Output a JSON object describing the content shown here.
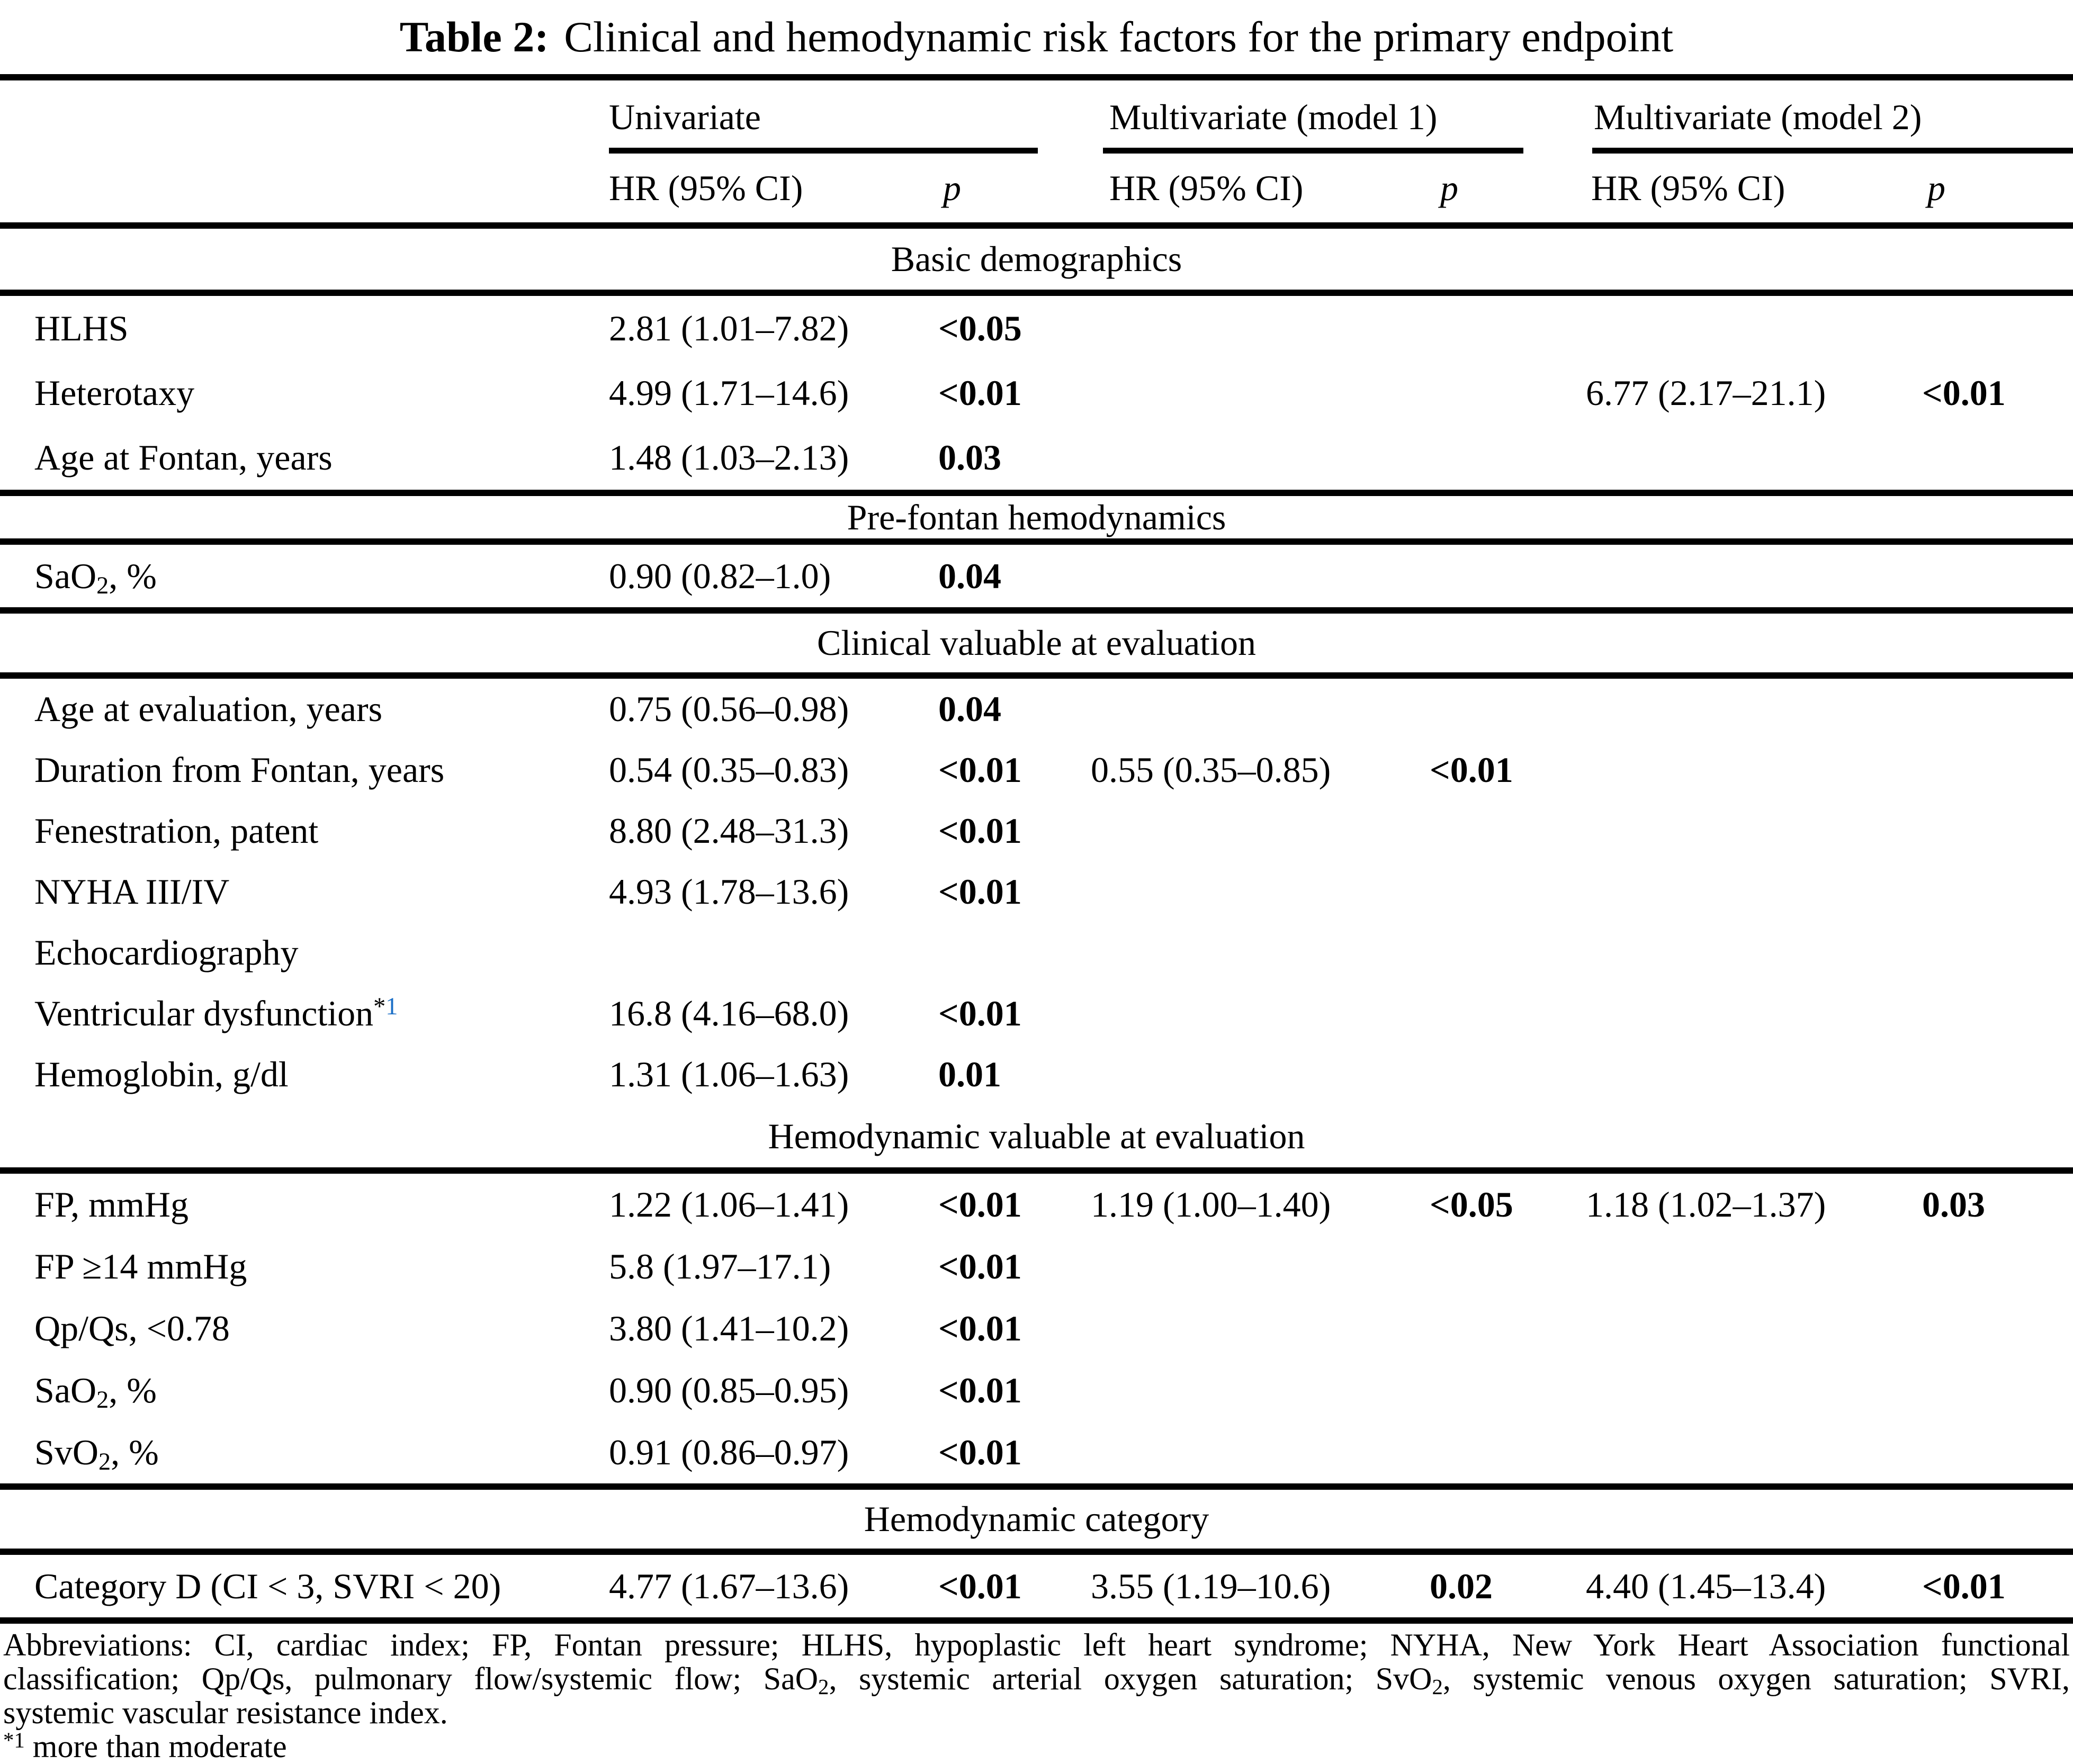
{
  "title": {
    "prefix": "Table 2:",
    "text": "Clinical and hemodynamic risk factors for the primary endpoint"
  },
  "columns": {
    "groups": [
      "Univariate",
      "Multivariate (model 1)",
      "Multivariate (model 2)"
    ],
    "hr_header": "HR (95% CI)",
    "p_header": "p"
  },
  "sections": [
    {
      "header": "Basic demographics",
      "rows": [
        {
          "label": "HLHS",
          "uni_hr": "2.81 (1.01–7.82)",
          "uni_p": "<0.05",
          "m1_hr": "",
          "m1_p": "",
          "m2_hr": "",
          "m2_p": ""
        },
        {
          "label": "Heterotaxy",
          "uni_hr": "4.99 (1.71–14.6)",
          "uni_p": "<0.01",
          "m1_hr": "",
          "m1_p": "",
          "m2_hr": "6.77 (2.17–21.1)",
          "m2_p": "<0.01"
        },
        {
          "label": "Age at Fontan, years",
          "uni_hr": "1.48 (1.03–2.13)",
          "uni_p": "0.03",
          "m1_hr": "",
          "m1_p": "",
          "m2_hr": "",
          "m2_p": ""
        }
      ]
    },
    {
      "header": "Pre-fontan hemodynamics",
      "rows": [
        {
          "label": "SaO<sub>2</sub>, %",
          "uni_hr": "0.90 (0.82–1.0)",
          "uni_p": "0.04",
          "m1_hr": "",
          "m1_p": "",
          "m2_hr": "",
          "m2_p": ""
        }
      ]
    },
    {
      "header": "Clinical valuable at evaluation",
      "rows": [
        {
          "label": "Age at evaluation, years",
          "uni_hr": "0.75 (0.56–0.98)",
          "uni_p": "0.04",
          "m1_hr": "",
          "m1_p": "",
          "m2_hr": "",
          "m2_p": ""
        },
        {
          "label": "Duration from Fontan, years",
          "uni_hr": "0.54 (0.35–0.83)",
          "uni_p": "<0.01",
          "m1_hr": "0.55 (0.35–0.85)",
          "m1_p": "<0.01",
          "m2_hr": "",
          "m2_p": ""
        },
        {
          "label": "Fenestration, patent",
          "uni_hr": "8.80 (2.48–31.3)",
          "uni_p": "<0.01",
          "m1_hr": "",
          "m1_p": "",
          "m2_hr": "",
          "m2_p": ""
        },
        {
          "label": "NYHA III/IV",
          "uni_hr": "4.93 (1.78–13.6)",
          "uni_p": "<0.01",
          "m1_hr": "",
          "m1_p": "",
          "m2_hr": "",
          "m2_p": ""
        },
        {
          "label": "Echocardiography",
          "uni_hr": "",
          "uni_p": "",
          "m1_hr": "",
          "m1_p": "",
          "m2_hr": "",
          "m2_p": ""
        },
        {
          "label": "Ventricular dysfunction<sup>*<span class=\"fn-blue\">1</span></sup>",
          "uni_hr": "16.8 (4.16–68.0)",
          "uni_p": "<0.01",
          "m1_hr": "",
          "m1_p": "",
          "m2_hr": "",
          "m2_p": ""
        },
        {
          "label": "Hemoglobin, g/dl",
          "uni_hr": "1.31 (1.06–1.63)",
          "uni_p": "0.01",
          "m1_hr": "",
          "m1_p": "",
          "m2_hr": "",
          "m2_p": ""
        }
      ]
    },
    {
      "header": "Hemodynamic valuable at evaluation",
      "rows": [
        {
          "label": "FP, mmHg",
          "uni_hr": "1.22 (1.06–1.41)",
          "uni_p": "<0.01",
          "m1_hr": "1.19 (1.00–1.40)",
          "m1_p": "<0.05",
          "m2_hr": "1.18 (1.02–1.37)",
          "m2_p": "0.03"
        },
        {
          "label": "FP ≥14 mmHg",
          "uni_hr": "5.8 (1.97–17.1)",
          "uni_p": "<0.01",
          "m1_hr": "",
          "m1_p": "",
          "m2_hr": "",
          "m2_p": ""
        },
        {
          "label": "Qp/Qs, <0.78",
          "uni_hr": "3.80 (1.41–10.2)",
          "uni_p": "<0.01",
          "m1_hr": "",
          "m1_p": "",
          "m2_hr": "",
          "m2_p": ""
        },
        {
          "label": "SaO<sub>2</sub>, %",
          "uni_hr": "0.90 (0.85–0.95)",
          "uni_p": "<0.01",
          "m1_hr": "",
          "m1_p": "",
          "m2_hr": "",
          "m2_p": ""
        },
        {
          "label": "SvO<sub>2</sub>, %",
          "uni_hr": "0.91 (0.86–0.97)",
          "uni_p": "<0.01",
          "m1_hr": "",
          "m1_p": "",
          "m2_hr": "",
          "m2_p": ""
        }
      ]
    },
    {
      "header": "Hemodynamic category",
      "rows": [
        {
          "label": "Category D (CI < 3, SVRI < 20)",
          "uni_hr": "4.77 (1.67–13.6)",
          "uni_p": "<0.01",
          "m1_hr": "3.55 (1.19–10.6)",
          "m1_p": "0.02",
          "m2_hr": "4.40 (1.45–13.4)",
          "m2_p": "<0.01"
        }
      ]
    }
  ],
  "footnotes": {
    "line1": "Abbreviations: CI, cardiac index; FP, Fontan pressure; HLHS, hypoplastic left heart syndrome; NYHA, New York Heart Association functional",
    "line2": "classification; Qp/Qs, pulmonary flow/systemic flow; SaO<sub>2</sub>, systemic arterial oxygen saturation; SvO<sub>2</sub>, systemic venous oxygen saturation; SVRI,",
    "line3": "systemic vascular resistance index.",
    "line4": "<sup>*1</sup> more than moderate"
  },
  "colors": {
    "reference_link_blue": "#1b6fc7",
    "text": "#000000",
    "background": "#ffffff"
  }
}
